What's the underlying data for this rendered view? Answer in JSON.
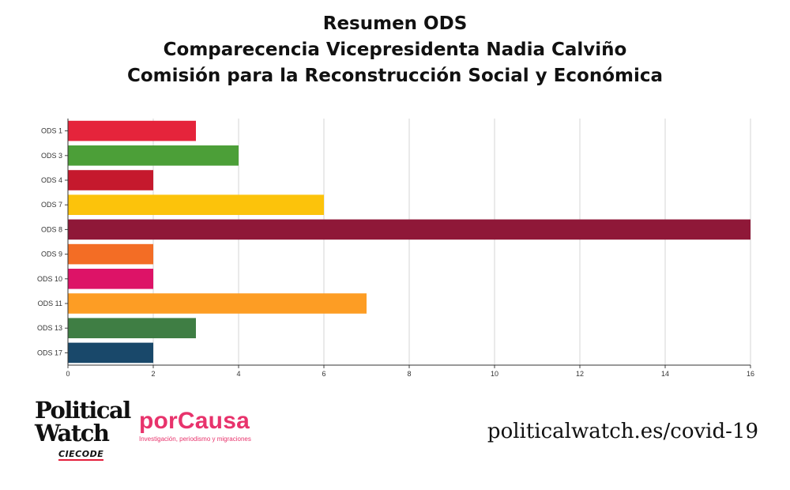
{
  "title": {
    "line1": "Resumen ODS",
    "line2": "Comparecencia Vicepresidenta Nadia Calviño",
    "line3": "Comisión para la Reconstrucción Social y Económica"
  },
  "chart_data": {
    "type": "bar",
    "orientation": "horizontal",
    "categories": [
      "ODS 1",
      "ODS 3",
      "ODS 4",
      "ODS 7",
      "ODS 8",
      "ODS 9",
      "ODS 10",
      "ODS 11",
      "ODS 13",
      "ODS 17"
    ],
    "values": [
      3,
      4,
      2,
      6,
      16,
      2,
      2,
      7,
      3,
      2
    ],
    "colors": [
      "#e5243b",
      "#4c9f38",
      "#c5192d",
      "#fcc30b",
      "#8f1838",
      "#f36d25",
      "#dd1367",
      "#fd9d24",
      "#3f7e44",
      "#19486a"
    ],
    "xlim": [
      0,
      16
    ],
    "xticks": [
      "0",
      "2",
      "4",
      "6",
      "8",
      "10",
      "12",
      "14",
      "16"
    ],
    "grid": true
  },
  "footer": {
    "pw_line1": "Political",
    "pw_line2": "Watch",
    "pw_sub": "CIECODE",
    "pc_name": "porCausa",
    "pc_tag": "Investigación, periodismo y migraciones",
    "url": "politicalwatch.es/covid-19"
  }
}
